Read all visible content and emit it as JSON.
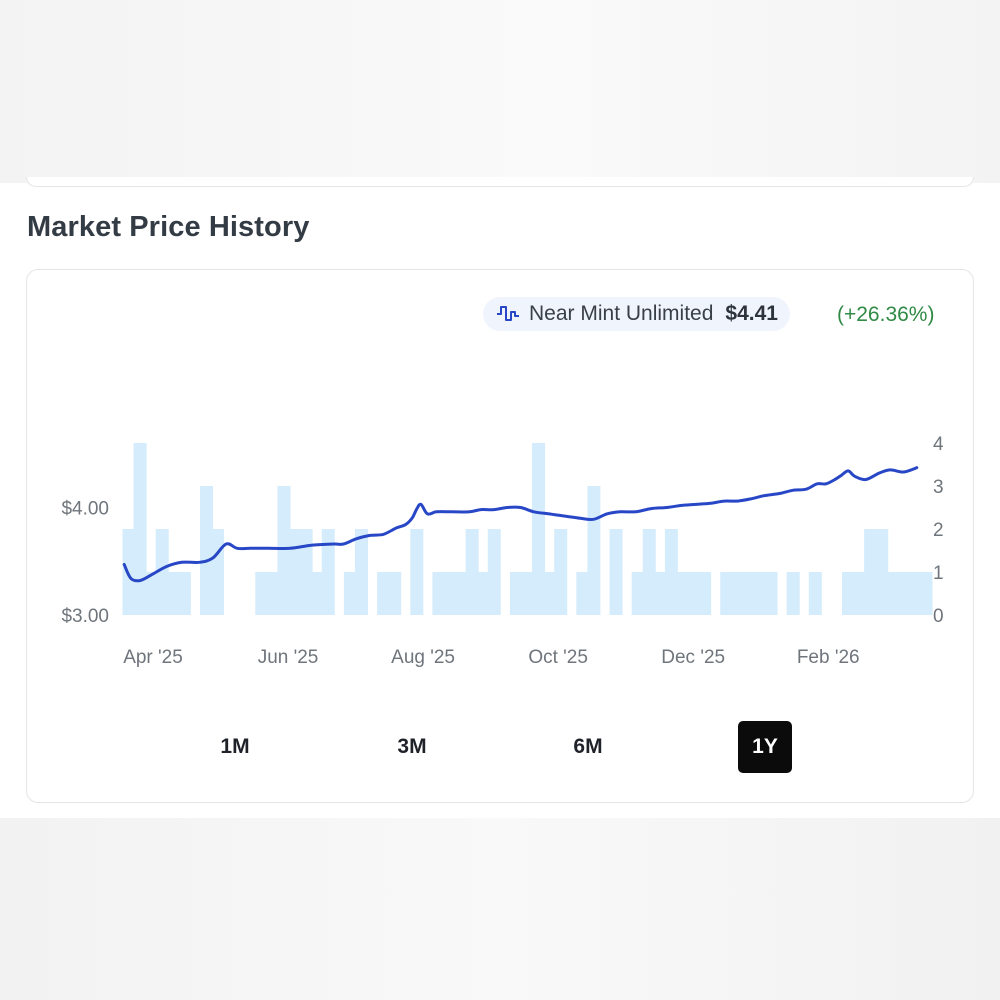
{
  "section": {
    "title": "Market Price History"
  },
  "legend": {
    "label": "Near Mint Unlimited",
    "price": "$4.41",
    "change": "(+26.36%)",
    "icon": "step-line-icon"
  },
  "ranges": [
    {
      "label": "1M",
      "active": false
    },
    {
      "label": "3M",
      "active": false
    },
    {
      "label": "6M",
      "active": false
    },
    {
      "label": "1Y",
      "active": true
    }
  ],
  "colors": {
    "line": "#2847c6",
    "bars": "#d4ecfb",
    "change_positive": "#2f8a45",
    "active_range_bg": "#0b0b0b"
  },
  "chart_data": {
    "type": "line",
    "title": "Market Price History",
    "x_ticks": [
      "Apr '25",
      "Jun '25",
      "Aug '25",
      "Oct '25",
      "Dec '25",
      "Feb '26"
    ],
    "x_tick_days": [
      14,
      75,
      136,
      197,
      258,
      319
    ],
    "y_left": {
      "ticks": [
        3.0,
        4.0
      ],
      "tick_labels": [
        "$3.00",
        "$4.00"
      ],
      "range": [
        3.0,
        4.6
      ]
    },
    "y_right": {
      "ticks": [
        0,
        1,
        2,
        3,
        4
      ],
      "range": [
        0,
        4
      ]
    },
    "grid": false,
    "series": [
      {
        "name": "Near Mint Unlimited",
        "kind": "line",
        "axis": "left",
        "points": [
          [
            1,
            3.47
          ],
          [
            4,
            3.34
          ],
          [
            8,
            3.32
          ],
          [
            13,
            3.37
          ],
          [
            20,
            3.45
          ],
          [
            27,
            3.49
          ],
          [
            35,
            3.49
          ],
          [
            41,
            3.53
          ],
          [
            47,
            3.66
          ],
          [
            52,
            3.62
          ],
          [
            58,
            3.62
          ],
          [
            66,
            3.62
          ],
          [
            76,
            3.62
          ],
          [
            86,
            3.65
          ],
          [
            96,
            3.66
          ],
          [
            100,
            3.66
          ],
          [
            106,
            3.71
          ],
          [
            112,
            3.74
          ],
          [
            118,
            3.75
          ],
          [
            124,
            3.81
          ],
          [
            128,
            3.84
          ],
          [
            131,
            3.9
          ],
          [
            133,
            3.98
          ],
          [
            135,
            4.03
          ],
          [
            138,
            3.94
          ],
          [
            142,
            3.96
          ],
          [
            149,
            3.96
          ],
          [
            157,
            3.96
          ],
          [
            162,
            3.98
          ],
          [
            168,
            3.98
          ],
          [
            174,
            4.0
          ],
          [
            180,
            4.0
          ],
          [
            186,
            3.96
          ],
          [
            193,
            3.94
          ],
          [
            200,
            3.92
          ],
          [
            207,
            3.9
          ],
          [
            213,
            3.89
          ],
          [
            219,
            3.94
          ],
          [
            225,
            3.96
          ],
          [
            232,
            3.96
          ],
          [
            239,
            3.99
          ],
          [
            246,
            4.0
          ],
          [
            253,
            4.02
          ],
          [
            260,
            4.03
          ],
          [
            266,
            4.04
          ],
          [
            272,
            4.06
          ],
          [
            278,
            4.06
          ],
          [
            284,
            4.08
          ],
          [
            290,
            4.11
          ],
          [
            297,
            4.13
          ],
          [
            303,
            4.16
          ],
          [
            309,
            4.17
          ],
          [
            314,
            4.22
          ],
          [
            318,
            4.22
          ],
          [
            322,
            4.26
          ],
          [
            325,
            4.3
          ],
          [
            328,
            4.34
          ],
          [
            331,
            4.29
          ],
          [
            336,
            4.26
          ],
          [
            342,
            4.32
          ],
          [
            347,
            4.35
          ],
          [
            353,
            4.33
          ],
          [
            359,
            4.37
          ]
        ]
      },
      {
        "name": "",
        "kind": "bar",
        "axis": "right",
        "days": [
          0,
          5,
          10,
          15,
          20,
          25,
          35,
          40,
          60,
          65,
          70,
          75,
          80,
          85,
          90,
          100,
          105,
          115,
          120,
          130,
          140,
          145,
          150,
          155,
          160,
          165,
          175,
          180,
          185,
          190,
          195,
          205,
          210,
          220,
          230,
          235,
          240,
          245,
          250,
          255,
          260,
          270,
          275,
          280,
          285,
          290,
          300,
          310,
          325,
          330,
          335,
          340,
          345,
          350,
          355,
          360
        ],
        "values": [
          2,
          4,
          1,
          2,
          1,
          1,
          3,
          2,
          1,
          1,
          3,
          2,
          2,
          1,
          2,
          1,
          2,
          1,
          1,
          2,
          1,
          1,
          1,
          2,
          1,
          2,
          1,
          1,
          4,
          1,
          2,
          1,
          3,
          2,
          1,
          2,
          1,
          2,
          1,
          1,
          1,
          1,
          1,
          1,
          1,
          1,
          1,
          1,
          1,
          1,
          2,
          2,
          1,
          1,
          1,
          1
        ]
      }
    ]
  }
}
